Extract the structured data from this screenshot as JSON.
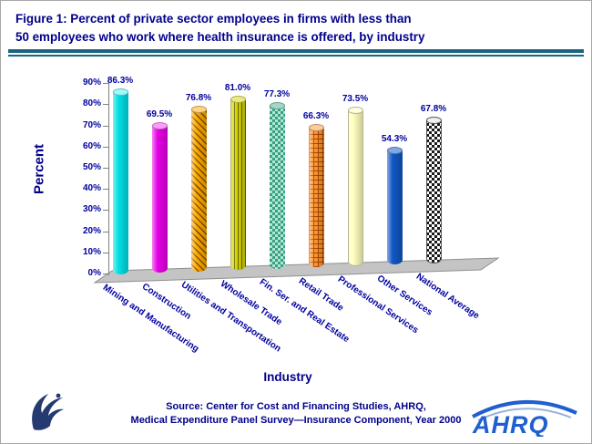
{
  "page": {
    "title_line1": "Figure 1: Percent of private sector employees in firms with less than",
    "title_line2": "50 employees who work where health insurance is offered, by industry"
  },
  "chart_data": {
    "type": "bar",
    "subtype": "3d-cylinder",
    "title": "Figure 1: Percent of private sector employees in firms with less than 50 employees who work where health insurance is offered, by industry",
    "xlabel": "Industry",
    "ylabel": "Percent",
    "ylim": [
      0,
      90
    ],
    "ytick_step": 10,
    "grid": false,
    "legend": "none",
    "ytick_labels": [
      "0%",
      "10%",
      "20%",
      "30%",
      "40%",
      "50%",
      "60%",
      "70%",
      "80%",
      "90%"
    ],
    "categories": [
      "Mining and Manufacturing",
      "Construction",
      "Utilities and Transportation",
      "Wholesale Trade",
      "Fin. Ser. and Real Estate",
      "Retail Trade",
      "Professional Services",
      "Other Services",
      "National Average"
    ],
    "values": [
      86.3,
      69.5,
      76.8,
      81.0,
      77.3,
      66.3,
      73.5,
      54.3,
      67.8
    ],
    "value_labels": [
      "86.3%",
      "69.5%",
      "76.8%",
      "81.0%",
      "77.3%",
      "66.3%",
      "73.5%",
      "54.3%",
      "67.8%"
    ],
    "bar_styles": [
      {
        "fill": "#00e0e6",
        "top": "#99ffff",
        "pattern": "solid",
        "accent": ""
      },
      {
        "fill": "#e600e6",
        "top": "#ff99ff",
        "pattern": "solid",
        "accent": ""
      },
      {
        "fill": "#ffaa00",
        "top": "#ffd480",
        "pattern": "diag",
        "accent": "#8a5400"
      },
      {
        "fill": "#d6d600",
        "top": "#ebeb7a",
        "pattern": "vert",
        "accent": "#6b6b00"
      },
      {
        "fill": "#33a183",
        "top": "#9fd9c4",
        "pattern": "checker",
        "accent": "#b8e4d4"
      },
      {
        "fill": "#ff9933",
        "top": "#ffcc99",
        "pattern": "grid",
        "accent": "#b34700"
      },
      {
        "fill": "#ffffbf",
        "top": "#ffffe0",
        "pattern": "solid",
        "accent": "",
        "outline": "#b3b38c"
      },
      {
        "fill": "#1257c4",
        "top": "#7fa8e8",
        "pattern": "solid",
        "accent": ""
      },
      {
        "fill": "#ffffff",
        "top": "#f0f0f0",
        "pattern": "checker",
        "accent": "#1a1a1a",
        "outline": "#555555"
      }
    ]
  },
  "source": {
    "label": "Source:",
    "line1": "Center for Cost and Financing Studies, AHRQ,",
    "line2": "Medical Expenditure Panel Survey—Insurance Component, Year 2000"
  },
  "logos": {
    "ahrq_text": "AHRQ"
  },
  "colors": {
    "title_text": "#00008b",
    "axis_text": "#0000a0",
    "divider": "#17657f",
    "floor": "#c4c4c4",
    "logo_blue": "#1f5fd0"
  }
}
